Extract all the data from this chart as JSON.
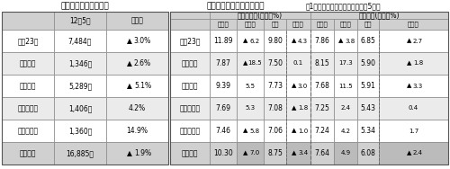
{
  "title_left": "居住用賃貸物件成約数",
  "title_right_bold": "新築・中古別平均成約賃料",
  "title_right_normal": "（1戸あたり）および前年比　（5月）",
  "left_col_headers": [
    "12年5月",
    "前年比"
  ],
  "mansion_header": "マンション(万円，%)",
  "apart_header": "アパート(万円，%)",
  "sub_headers": [
    "新　築",
    "前年比",
    "中古",
    "前年比",
    "新　築",
    "前年比",
    "中古",
    "前年比"
  ],
  "regions": [
    "東京23区",
    "東京都下",
    "神奈川県",
    "埼　玉　県",
    "千　葉　県",
    "首都圏計"
  ],
  "left_data": [
    [
      "7,484件",
      "▲ 3.0%",
      true
    ],
    [
      "1,346件",
      "▲ 2.6%",
      true
    ],
    [
      "5,289件",
      "▲ 5.1%",
      true
    ],
    [
      "1,406件",
      "4.2%",
      false
    ],
    [
      "1,360件",
      "14.9%",
      false
    ],
    [
      "16,885件",
      "▲ 1.9%",
      true
    ]
  ],
  "right_data": [
    [
      "11.89",
      "▲ 6.2",
      "9.80",
      "▲ 4.3",
      "7.86",
      "▲ 3.8",
      "6.85",
      "▲ 2.7"
    ],
    [
      "7.87",
      "▲ 18.5",
      "7.50",
      "0.1",
      "8.15",
      "17.3",
      "5.90",
      "▲ 1.8"
    ],
    [
      "9.39",
      "5.5",
      "7.73",
      "▲ 3.0",
      "7.68",
      "11.5",
      "5.91",
      "▲ 3.3"
    ],
    [
      "7.69",
      "5.3",
      "7.08",
      "▲ 1.8",
      "7.25",
      "2.4",
      "5.43",
      "0.4"
    ],
    [
      "7.46",
      "▲ 5.8",
      "7.06",
      "▲ 1.0",
      "7.24",
      "4.2",
      "5.34",
      "1.7"
    ],
    [
      "10.30",
      "▲ 7.0",
      "8.75",
      "▲ 3.4",
      "7.64",
      "4.9",
      "6.08",
      "▲ 2.4"
    ]
  ],
  "bg_header": "#d0d0d0",
  "bg_total": "#d0d0d0",
  "bg_white": "#ffffff",
  "bg_light": "#ebebeb",
  "border_color": "#888888",
  "font_size": 5.5,
  "font_size_title": 6.5,
  "font_size_small": 5.0
}
